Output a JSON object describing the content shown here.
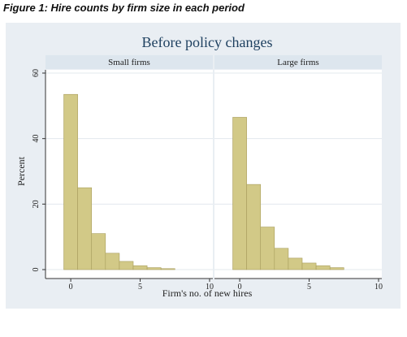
{
  "figure": {
    "caption": "Figure 1: Hire counts by firm size in each period"
  },
  "colors": {
    "outer_background": "#e9eef3",
    "panel_header": "#dde6ee",
    "plot_background": "#ffffff",
    "bar_fill": "#d2c987",
    "bar_stroke": "#a89d5c",
    "title_color": "#1d3f5f"
  },
  "chart_data": {
    "type": "bar",
    "title": "Before policy changes",
    "xlabel": "Firm's no. of new hires",
    "ylabel": "Percent",
    "ylim": [
      0,
      60
    ],
    "yticks": [
      0,
      20,
      40,
      60
    ],
    "xlim": [
      -1,
      10
    ],
    "xticks": [
      0,
      5,
      10
    ],
    "bin_width": 1,
    "grid": true,
    "panels": [
      {
        "name": "Small firms",
        "bins": [
          0,
          1,
          2,
          3,
          4,
          5,
          6,
          7
        ],
        "values": [
          53.5,
          25,
          11,
          5,
          2.5,
          1.2,
          0.6,
          0.3
        ]
      },
      {
        "name": "Large firms",
        "bins": [
          0,
          1,
          2,
          3,
          4,
          5,
          6,
          7
        ],
        "values": [
          46.5,
          26,
          13,
          6.5,
          3.5,
          2,
          1.2,
          0.6
        ]
      }
    ]
  }
}
